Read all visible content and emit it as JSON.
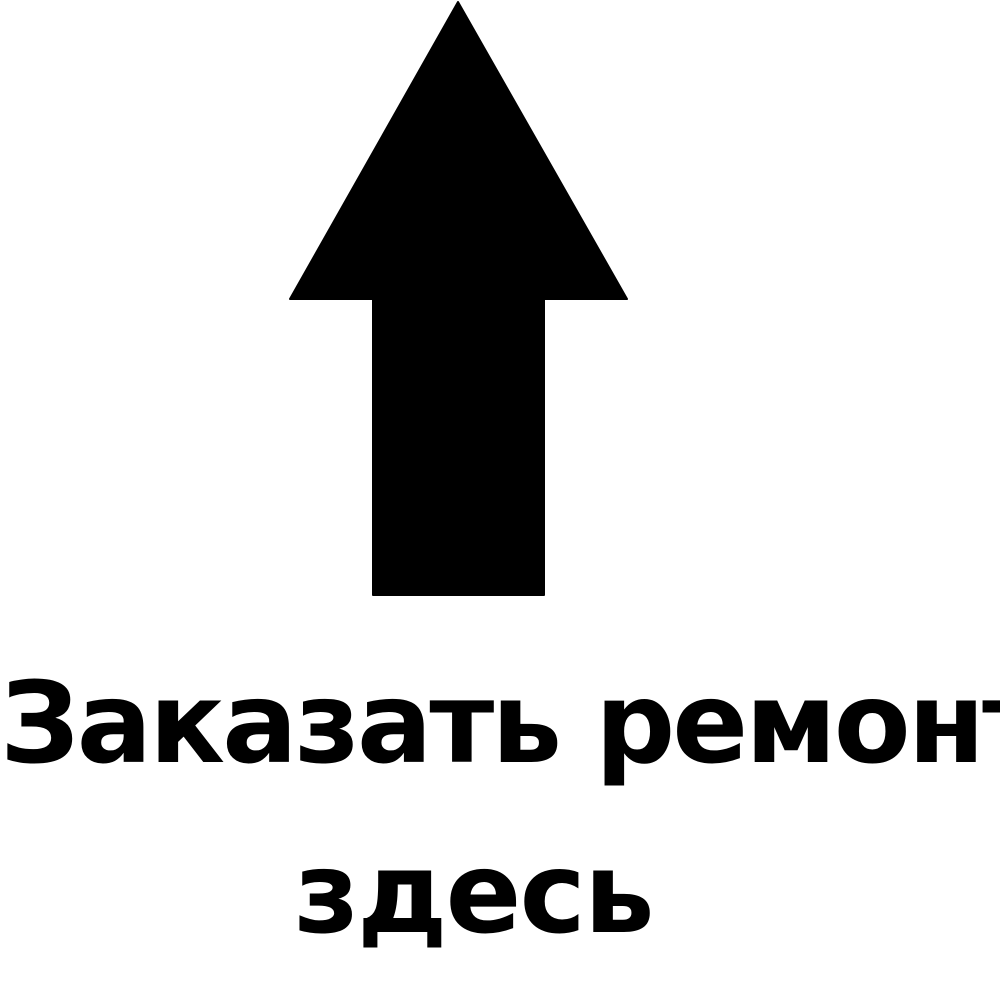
{
  "caption": {
    "line1": "Заказать ремонт",
    "line2": "здесь"
  },
  "colors": {
    "background": "#ffffff",
    "arrow": "#000000",
    "text": "#000000"
  },
  "icon": "arrow-up-icon"
}
